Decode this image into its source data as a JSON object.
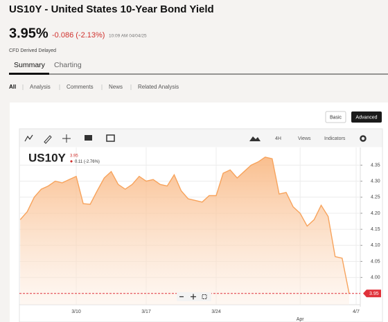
{
  "header": {
    "title": "US10Y - United States 10-Year Bond Yield",
    "price": "3.95%",
    "change": "-0.086 (-2.13%)",
    "time": "10:09 AM 04/04/25",
    "note": "CFD Derived Delayed"
  },
  "tabs": [
    "Summary",
    "Charting"
  ],
  "nav": [
    "All",
    "Analysis",
    "Comments",
    "News",
    "Related Analysis"
  ],
  "buttons": [
    "Basic",
    "Advanced"
  ],
  "toolbar": {
    "interval": "4H",
    "views": "Views",
    "indicators": "Indicators"
  },
  "chart_data": {
    "type": "area",
    "symbol": "US10Y",
    "legend_value": "3.95",
    "legend_change": "0.11 (-2.76%)",
    "color": "#f7a35c",
    "grid": true,
    "categories": [
      null,
      null,
      null,
      null,
      null,
      null,
      null,
      null,
      "3/10",
      null,
      null,
      null,
      null,
      null,
      null,
      null,
      null,
      null,
      "3/17",
      null,
      null,
      null,
      null,
      null,
      null,
      null,
      null,
      null,
      "3/24",
      null,
      null,
      null,
      null,
      null,
      null,
      null,
      null,
      null,
      null,
      null,
      "Apr",
      null,
      null,
      null,
      null,
      null,
      null,
      null,
      "4/7"
    ],
    "values": [
      4.18,
      4.205,
      4.25,
      4.275,
      4.285,
      4.3,
      4.295,
      4.305,
      4.315,
      4.23,
      4.228,
      4.27,
      4.31,
      4.33,
      4.29,
      4.275,
      4.29,
      4.315,
      4.3,
      4.305,
      4.29,
      4.285,
      4.32,
      4.27,
      4.245,
      4.24,
      4.235,
      4.255,
      4.255,
      4.325,
      4.335,
      4.31,
      4.33,
      4.35,
      4.36,
      4.375,
      4.37,
      4.26,
      4.265,
      4.22,
      4.2,
      4.16,
      4.18,
      4.225,
      4.19,
      4.065,
      4.06,
      3.95,
      null
    ],
    "last_value": 3.95,
    "ylim": [
      3.915,
      4.405
    ],
    "yticks": [
      {
        "value": 4.0,
        "label": "4.00"
      },
      4.05,
      {
        "value": 4.1,
        "label": "4.10"
      },
      4.15,
      {
        "value": 4.2,
        "label": "4.20"
      },
      4.25,
      {
        "value": 4.3,
        "label": "4.30"
      },
      4.35
    ]
  }
}
